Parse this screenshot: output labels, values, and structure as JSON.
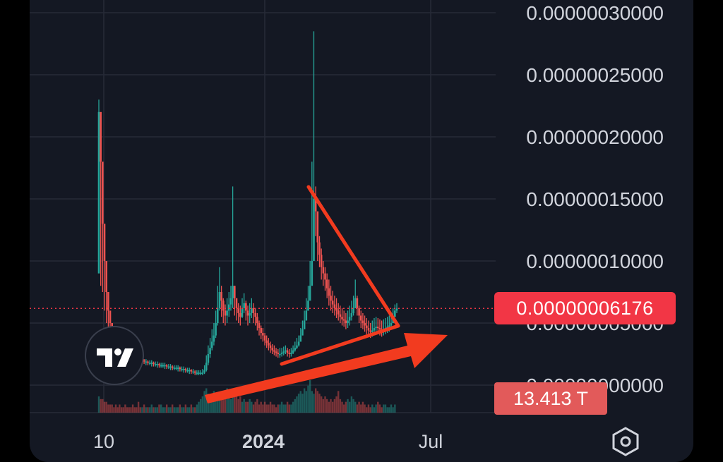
{
  "chart_data": {
    "type": "candlestick",
    "x_ticks": [
      "10",
      "2024",
      "Jul"
    ],
    "y_ticks": [
      "0.00000030000",
      "0.00000025000",
      "0.00000020000",
      "0.00000015000",
      "0.00000010000",
      "0.00000005000",
      "0.00000000000"
    ],
    "ylim": [
      0,
      3e-07
    ],
    "current_price": 6.176e-08,
    "current_price_label": "0.00000006176",
    "volume_label": "13.413 T",
    "grid": true,
    "series": [
      {
        "name": "price",
        "values": [
          2.2e-07,
          1.8e-07,
          1.3e-07,
          1e-07,
          7.5e-08,
          6e-08,
          5e-08,
          4.5e-08,
          4e-08,
          3.8e-08,
          3.5e-08,
          3.3e-08,
          3.1e-08,
          3e-08,
          2.8e-08,
          2.7e-08,
          2.6e-08,
          2.5e-08,
          2.4e-08,
          2.3e-08,
          2.2e-08,
          2.1e-08,
          2e-08,
          2e-08,
          1.9e-08,
          1.9e-08,
          1.8e-08,
          1.8e-08,
          1.8e-08,
          1.7e-08,
          1.7e-08,
          1.7e-08,
          1.6e-08,
          1.6e-08,
          1.6e-08,
          1.6e-08,
          1.5e-08,
          1.5e-08,
          1.5e-08,
          1.4e-08,
          1.4e-08,
          1.4e-08,
          1.4e-08,
          1.3e-08,
          1.3e-08,
          1.3e-08,
          1.2e-08,
          1.2e-08,
          1.2e-08,
          1.1e-08,
          1.1e-08,
          1e-08,
          1e-08,
          1e-08,
          1e-08,
          1e-08,
          1.2e-08,
          1.8e-08,
          2.5e-08,
          3e-08,
          3.5e-08,
          4e-08,
          5e-08,
          6.2e-08,
          7.5e-08,
          6.8e-08,
          6e-08,
          5.6e-08,
          6e-08,
          6.5e-08,
          7e-08,
          8e-08,
          7e-08,
          6.2e-08,
          5.8e-08,
          5.5e-08,
          6.2e-08,
          6.6e-08,
          6e-08,
          5.6e-08,
          5.8e-08,
          6.2e-08,
          5.8e-08,
          5.5e-08,
          5e-08,
          4.6e-08,
          4.2e-08,
          4e-08,
          3.6e-08,
          3.4e-08,
          3.2e-08,
          3e-08,
          2.8e-08,
          2.7e-08,
          2.6e-08,
          2.5e-08,
          2.5e-08,
          2.6e-08,
          2.7e-08,
          2.8e-08,
          2.6e-08,
          2.5e-08,
          2.6e-08,
          2.8e-08,
          3e-08,
          3.2e-08,
          3.5e-08,
          4e-08,
          4.5e-08,
          5.2e-08,
          6e-08,
          6.8e-08,
          8e-08,
          1e-07,
          1.5e-07,
          1.4e-07,
          1.15e-07,
          1.05e-07,
          9.5e-08,
          9e-08,
          8.5e-08,
          7.8e-08,
          7.2e-08,
          6.8e-08,
          6.5e-08,
          6.2e-08,
          6e-08,
          5.7e-08,
          5.5e-08,
          5.3e-08,
          5.2e-08,
          5e-08,
          5.2e-08,
          5.5e-08,
          5.8e-08,
          6.2e-08,
          7e-08,
          6.2e-08,
          5.6e-08,
          5.2e-08,
          5e-08,
          4.8e-08,
          4.6e-08,
          4.4e-08,
          4.3e-08,
          4.4e-08,
          4.6e-08,
          4.7e-08,
          4.6e-08,
          4.5e-08,
          4.4e-08,
          4.5e-08,
          4.6e-08,
          4.7e-08,
          4.8e-08,
          5e-08,
          5.5e-08,
          6e-08,
          6.176e-08
        ],
        "highs": [
          2.3e-07,
          1.9e-07,
          1.4e-07,
          1.1e-07,
          8e-08,
          6.5e-08,
          5.5e-08,
          4.8e-08,
          4.3e-08,
          4e-08,
          3.7e-08,
          3.5e-08,
          3.3e-08,
          3.2e-08,
          3e-08,
          2.9e-08,
          2.8e-08,
          2.7e-08,
          2.6e-08,
          2.5e-08,
          2.4e-08,
          2.3e-08,
          2.2e-08,
          2.2e-08,
          2.1e-08,
          2.1e-08,
          2e-08,
          2e-08,
          2e-08,
          1.9e-08,
          1.9e-08,
          1.9e-08,
          1.8e-08,
          1.8e-08,
          1.8e-08,
          1.8e-08,
          1.7e-08,
          1.7e-08,
          1.7e-08,
          1.6e-08,
          1.6e-08,
          1.6e-08,
          1.6e-08,
          1.5e-08,
          1.5e-08,
          1.5e-08,
          1.4e-08,
          1.4e-08,
          1.4e-08,
          1.3e-08,
          1.3e-08,
          1.2e-08,
          1.2e-08,
          1.2e-08,
          1.2e-08,
          1.3e-08,
          1.6e-08,
          2.4e-08,
          3.2e-08,
          3.8e-08,
          4.5e-08,
          5e-08,
          6e-08,
          8e-08,
          9.5e-08,
          8e-08,
          7e-08,
          6.5e-08,
          7e-08,
          7.5e-08,
          8e-08,
          1.6e-07,
          8e-08,
          7e-08,
          6.6e-08,
          6.4e-08,
          7e-08,
          7.4e-08,
          6.8e-08,
          6.4e-08,
          6.6e-08,
          7e-08,
          6.6e-08,
          6.2e-08,
          5.8e-08,
          5.2e-08,
          4.8e-08,
          4.6e-08,
          4.2e-08,
          4e-08,
          3.8e-08,
          3.5e-08,
          3.3e-08,
          3.2e-08,
          3e-08,
          2.9e-08,
          3e-08,
          3e-08,
          3.1e-08,
          3.2e-08,
          3e-08,
          2.9e-08,
          3e-08,
          3.2e-08,
          3.5e-08,
          3.8e-08,
          4e-08,
          4.6e-08,
          5.2e-08,
          6e-08,
          7e-08,
          8e-08,
          1e-07,
          1.8e-07,
          2.85e-07,
          1.6e-07,
          1.3e-07,
          1.2e-07,
          1.1e-07,
          1e-07,
          9.5e-08,
          9e-08,
          8.5e-08,
          8e-08,
          7.6e-08,
          7.2e-08,
          7e-08,
          6.6e-08,
          6.4e-08,
          6.2e-08,
          6e-08,
          5.8e-08,
          6e-08,
          6.4e-08,
          6.8e-08,
          7.2e-08,
          8.5e-08,
          7.2e-08,
          6.4e-08,
          6e-08,
          5.8e-08,
          5.6e-08,
          5.4e-08,
          5.2e-08,
          5e-08,
          5.2e-08,
          5.4e-08,
          5.5e-08,
          5.4e-08,
          5.3e-08,
          5.2e-08,
          5.3e-08,
          5.4e-08,
          5.5e-08,
          5.6e-08,
          5.8e-08,
          6.2e-08,
          6.5e-08,
          6.6e-08
        ],
        "lows": [
          9e-08,
          8e-08,
          7.5e-08,
          6e-08,
          5e-08,
          4.5e-08,
          4e-08,
          3.7e-08,
          3.4e-08,
          3.2e-08,
          3e-08,
          2.9e-08,
          2.7e-08,
          2.6e-08,
          2.5e-08,
          2.4e-08,
          2.3e-08,
          2.2e-08,
          2.1e-08,
          2e-08,
          1.9e-08,
          1.8e-08,
          1.8e-08,
          1.7e-08,
          1.7e-08,
          1.6e-08,
          1.6e-08,
          1.6e-08,
          1.5e-08,
          1.5e-08,
          1.5e-08,
          1.4e-08,
          1.4e-08,
          1.4e-08,
          1.4e-08,
          1.3e-08,
          1.3e-08,
          1.3e-08,
          1.2e-08,
          1.2e-08,
          1.2e-08,
          1.2e-08,
          1.1e-08,
          1.1e-08,
          1.1e-08,
          1e-08,
          1e-08,
          1e-08,
          9e-09,
          9e-09,
          9e-09,
          8e-09,
          8e-09,
          8e-09,
          8e-09,
          8e-09,
          9e-09,
          1.1e-08,
          1.6e-08,
          2.2e-08,
          2.8e-08,
          3.2e-08,
          3.8e-08,
          4.8e-08,
          6e-08,
          5.5e-08,
          5e-08,
          4.8e-08,
          5e-08,
          5.5e-08,
          6e-08,
          6.2e-08,
          5.6e-08,
          5.2e-08,
          5e-08,
          4.8e-08,
          5.4e-08,
          5.8e-08,
          5.2e-08,
          4.8e-08,
          5e-08,
          5.4e-08,
          5e-08,
          4.8e-08,
          4.4e-08,
          4e-08,
          3.7e-08,
          3.5e-08,
          3.2e-08,
          3e-08,
          2.8e-08,
          2.6e-08,
          2.5e-08,
          2.4e-08,
          2.3e-08,
          2.2e-08,
          2.2e-08,
          2.3e-08,
          2.4e-08,
          2.5e-08,
          2.3e-08,
          2.2e-08,
          2.3e-08,
          2.5e-08,
          2.7e-08,
          2.9e-08,
          3.1e-08,
          3.5e-08,
          4e-08,
          4.6e-08,
          5.4e-08,
          6e-08,
          7e-08,
          8.5e-08,
          1.2e-07,
          1.2e-07,
          1e-07,
          9.5e-08,
          8.5e-08,
          8e-08,
          7.6e-08,
          7e-08,
          6.4e-08,
          6e-08,
          5.8e-08,
          5.6e-08,
          5.4e-08,
          5.2e-08,
          5e-08,
          4.8e-08,
          4.7e-08,
          4.5e-08,
          4.6e-08,
          4.8e-08,
          5.2e-08,
          5.6e-08,
          6.2e-08,
          5.6e-08,
          5e-08,
          4.6e-08,
          4.5e-08,
          4.3e-08,
          4.1e-08,
          3.9e-08,
          3.8e-08,
          3.9e-08,
          4.1e-08,
          4.2e-08,
          4.1e-08,
          4e-08,
          3.9e-08,
          4e-08,
          4.1e-08,
          4.2e-08,
          4.3e-08,
          4.5e-08,
          5e-08,
          5.5e-08,
          5.8e-08
        ]
      }
    ],
    "volume": [
      6,
      5,
      5,
      4,
      4,
      3,
      3,
      3,
      2,
      3,
      2,
      3,
      2,
      2,
      3,
      2,
      2,
      2,
      3,
      2,
      2,
      4,
      2,
      2,
      3,
      2,
      2,
      2,
      3,
      2,
      2,
      2,
      3,
      3,
      2,
      2,
      3,
      2,
      2,
      3,
      2,
      2,
      2,
      3,
      2,
      2,
      3,
      2,
      2,
      3,
      2,
      2,
      3,
      4,
      5,
      6,
      8,
      9,
      7,
      6,
      5,
      8,
      7,
      6,
      7,
      8,
      5,
      6,
      9,
      6,
      5,
      8,
      7,
      6,
      5,
      6,
      4,
      5,
      4,
      4,
      5,
      4,
      3,
      4,
      5,
      3,
      4,
      3,
      4,
      3,
      3,
      4,
      3,
      3,
      2,
      3,
      3,
      4,
      3,
      3,
      4,
      3,
      3,
      4,
      5,
      6,
      7,
      8,
      7,
      9,
      8,
      10,
      12,
      8,
      7,
      9,
      8,
      7,
      6,
      5,
      6,
      5,
      4,
      5,
      4,
      5,
      6,
      8,
      5,
      4,
      3,
      4,
      5,
      4,
      6,
      5,
      4,
      3,
      4,
      3,
      4,
      3,
      2,
      3,
      2,
      3,
      2,
      3,
      4,
      3,
      2,
      3,
      3,
      2,
      2,
      3,
      2,
      3
    ],
    "annotations": [
      "resistance-trendline",
      "support-trendline",
      "breakout-arrow"
    ]
  },
  "logo": {
    "name": "tradingview-logo"
  },
  "settings": {
    "icon": "hexagon-settings-icon"
  },
  "colors": {
    "up": "#26a69a",
    "down": "#ef5350",
    "background": "#141823",
    "grid": "#262b38",
    "axis_text": "#d1d4dc",
    "annotation": "#f23b1f"
  }
}
